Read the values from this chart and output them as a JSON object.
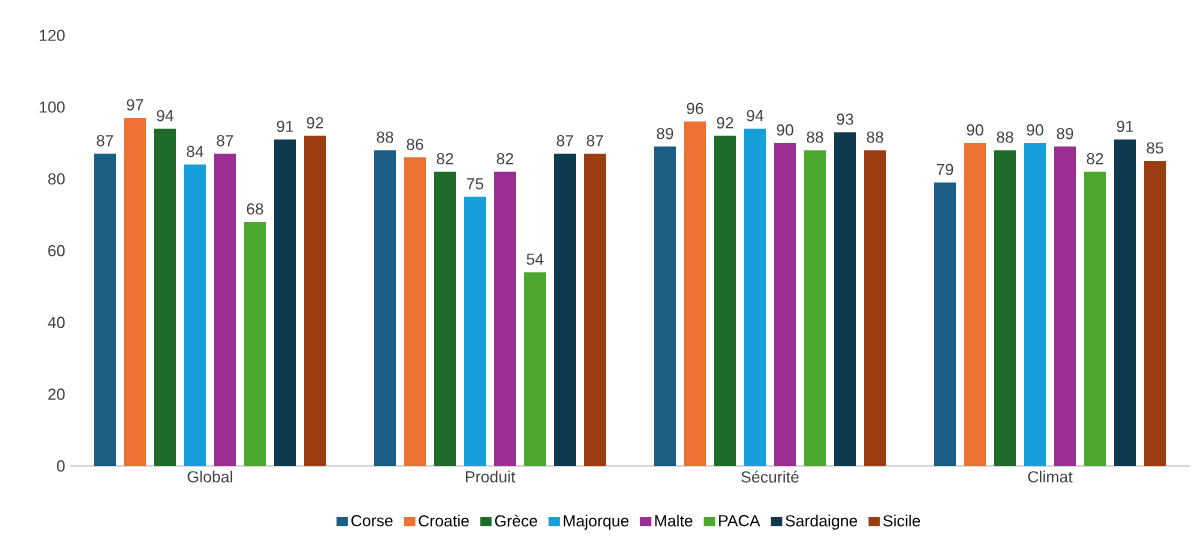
{
  "chart_data": {
    "type": "bar",
    "categories": [
      "Global",
      "Produit",
      "Sécurité",
      "Climat"
    ],
    "series": [
      {
        "name": "Corse",
        "color": "#1a5e84",
        "values": [
          87,
          88,
          89,
          79
        ]
      },
      {
        "name": "Croatie",
        "color": "#ed7133",
        "values": [
          97,
          86,
          96,
          90
        ]
      },
      {
        "name": "Grèce",
        "color": "#1e6b2a",
        "values": [
          94,
          82,
          92,
          88
        ]
      },
      {
        "name": "Majorque",
        "color": "#169fd8",
        "values": [
          84,
          75,
          94,
          90
        ]
      },
      {
        "name": "Malte",
        "color": "#9b2e91",
        "values": [
          87,
          82,
          90,
          89
        ]
      },
      {
        "name": "PACA",
        "color": "#4ea72e",
        "values": [
          68,
          54,
          88,
          82
        ]
      },
      {
        "name": "Sardaigne",
        "color": "#0e3a50",
        "values": [
          91,
          87,
          93,
          91
        ]
      },
      {
        "name": "Sicile",
        "color": "#9a3d10",
        "values": [
          92,
          87,
          88,
          85
        ]
      }
    ],
    "ylim": [
      0,
      120
    ],
    "yticks": [
      0,
      20,
      40,
      60,
      80,
      100,
      120
    ],
    "grid": false,
    "legend": "bottom",
    "data_labels": true
  }
}
